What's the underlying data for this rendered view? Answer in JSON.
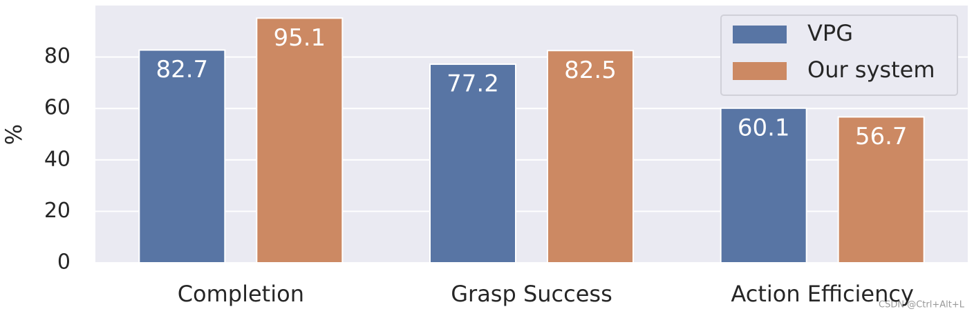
{
  "chart_data": {
    "type": "bar",
    "ylabel": "%",
    "categories": [
      "Completion",
      "Grasp Success",
      "Action Efficiency"
    ],
    "series": [
      {
        "name": "VPG",
        "color": "#5875a4",
        "values": [
          82.7,
          77.2,
          60.1
        ]
      },
      {
        "name": "Our system",
        "color": "#cc8963",
        "values": [
          95.1,
          82.5,
          56.7
        ]
      }
    ],
    "ylim": [
      0,
      100
    ],
    "yticks": [
      0,
      20,
      40,
      60,
      80
    ],
    "grid": true,
    "legend": "upper right",
    "watermark": "CSDN @Ctrl+Alt+L"
  }
}
